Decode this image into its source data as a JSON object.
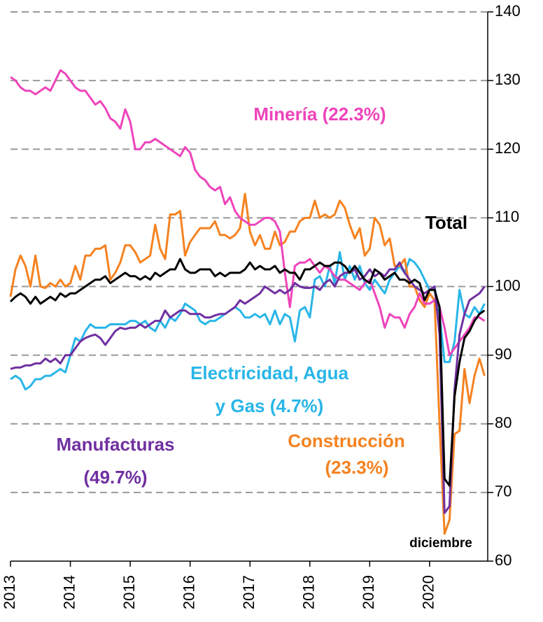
{
  "chart_data": {
    "type": "line",
    "categories": [
      "2013",
      null,
      null,
      null,
      null,
      null,
      null,
      null,
      null,
      null,
      null,
      null,
      "2014",
      null,
      null,
      null,
      null,
      null,
      null,
      null,
      null,
      null,
      null,
      null,
      "2015",
      null,
      null,
      null,
      null,
      null,
      null,
      null,
      null,
      null,
      null,
      null,
      "2016",
      null,
      null,
      null,
      null,
      null,
      null,
      null,
      null,
      null,
      null,
      null,
      "2017",
      null,
      null,
      null,
      null,
      null,
      null,
      null,
      null,
      null,
      null,
      null,
      "2018",
      null,
      null,
      null,
      null,
      null,
      null,
      null,
      null,
      null,
      null,
      null,
      "2019",
      null,
      null,
      null,
      null,
      null,
      null,
      null,
      null,
      null,
      null,
      null,
      "2020",
      null,
      null,
      null,
      null,
      null,
      null,
      null,
      null,
      null,
      null,
      null
    ],
    "ylim": [
      60,
      140
    ],
    "yticks": [
      60,
      70,
      80,
      90,
      100,
      110,
      120,
      130,
      140
    ],
    "grid": true,
    "y_axis_side": "right",
    "series": [
      {
        "label": [
          "Total"
        ],
        "color": "#000000",
        "values": [
          97.8,
          98.5,
          99,
          98.5,
          97.5,
          98.5,
          97.5,
          98,
          98.5,
          98,
          99,
          98.5,
          99,
          99,
          99.5,
          100,
          100.5,
          101,
          101,
          101.5,
          100.5,
          101,
          101.5,
          102,
          101.5,
          101.5,
          101,
          101.5,
          101,
          102,
          101.5,
          102,
          102.5,
          102.5,
          104,
          102.5,
          102,
          102,
          102.5,
          102.5,
          102.5,
          101.5,
          102,
          101.5,
          102,
          102,
          102,
          102.5,
          103.5,
          102.5,
          103,
          102.5,
          102.5,
          103,
          102,
          102.5,
          102,
          102,
          101,
          102.5,
          102.5,
          103,
          103.5,
          103,
          103,
          103.5,
          103.5,
          103,
          102,
          103,
          102,
          101,
          100.5,
          102.5,
          102,
          101,
          101.5,
          102,
          101,
          101,
          100.5,
          101,
          100.5,
          98,
          99.5,
          99.5,
          97,
          72,
          71,
          84,
          89,
          92.5,
          93.5,
          95,
          96,
          96.5
        ]
      },
      {
        "label": [
          "Minería (22.3%)"
        ],
        "color": "#ee44bb",
        "values": [
          130.5,
          130,
          129,
          128.5,
          128.5,
          128,
          128.5,
          129,
          128.5,
          130,
          131.5,
          131,
          130,
          129,
          128.5,
          128.5,
          127.5,
          126.5,
          127,
          126,
          124.5,
          124,
          123,
          125.8,
          124,
          120,
          120,
          121,
          121,
          121.5,
          121,
          120.5,
          120,
          119.5,
          119,
          120.3,
          119.5,
          117,
          116,
          115.5,
          114.5,
          114,
          114.5,
          112,
          113,
          111,
          110,
          109.5,
          109,
          109,
          109.5,
          110,
          110,
          109.5,
          108,
          102,
          97,
          103,
          103.5,
          103.5,
          104,
          103,
          102,
          103,
          102.5,
          101.5,
          101,
          101,
          100.5,
          100,
          99.5,
          100.5,
          101,
          99,
          97,
          94,
          96,
          95.5,
          95.5,
          94,
          96,
          97,
          99,
          97.5,
          97.5,
          98,
          97,
          94,
          90,
          91,
          92,
          93,
          94,
          95.5,
          95.5,
          95
        ]
      },
      {
        "label": [
          "Manufacturas",
          "(49.7%)"
        ],
        "color": "#7030a0",
        "values": [
          88,
          88.2,
          88.2,
          88.5,
          88.5,
          88.8,
          88.8,
          89.5,
          89,
          89.5,
          88.8,
          90,
          90,
          91,
          92,
          92.5,
          92.8,
          93,
          92.5,
          91.5,
          92.5,
          93.5,
          94,
          93.8,
          94,
          94,
          94.5,
          94,
          94.5,
          95,
          95,
          96.5,
          95.5,
          96,
          96.5,
          96.5,
          96,
          96,
          96,
          95.5,
          95.5,
          95.8,
          96,
          96,
          96.5,
          97,
          98,
          97.5,
          98,
          98.5,
          99,
          100,
          99.5,
          99,
          99.5,
          99,
          99.5,
          100.5,
          100,
          99.8,
          99.8,
          100,
          99.5,
          100.5,
          101,
          100,
          101.5,
          102,
          102,
          102.5,
          101,
          101.5,
          102.5,
          101.5,
          102,
          101.5,
          102.5,
          102.5,
          103.5,
          102,
          101,
          100,
          99.5,
          99,
          99.5,
          100,
          93,
          67,
          68,
          85,
          93,
          96,
          98,
          98.5,
          99,
          100
        ]
      },
      {
        "label": [
          "Electricidad, Agua",
          "y Gas (4.7%)"
        ],
        "color": "#29b6e8",
        "values": [
          86.5,
          87,
          86.5,
          85,
          85.5,
          86.5,
          86.5,
          87,
          87,
          87.5,
          88,
          87.5,
          90,
          92.5,
          92,
          93.5,
          94.5,
          94,
          94,
          94,
          94.5,
          94.5,
          94.5,
          94.5,
          95,
          95,
          94.5,
          95,
          94,
          93.5,
          95,
          94,
          95.5,
          95,
          96,
          97.5,
          97,
          96.5,
          95,
          94.5,
          95,
          95,
          95.5,
          96,
          96.5,
          97,
          96.5,
          95.5,
          95.5,
          96,
          95.5,
          96,
          94.5,
          96.5,
          94.5,
          96,
          95.5,
          92,
          96.5,
          97,
          95.5,
          101,
          101.5,
          100,
          103,
          100.5,
          105,
          101,
          103,
          101,
          103,
          100.5,
          99.5,
          101,
          100,
          99,
          101,
          102,
          103,
          102,
          104,
          103.5,
          102.5,
          101,
          99.5,
          100,
          96,
          89,
          89,
          92,
          99.5,
          96,
          95.5,
          97,
          96,
          97.5
        ]
      },
      {
        "label": [
          "Construcción",
          "(23.3%)"
        ],
        "color": "#f58220",
        "values": [
          98.5,
          102.5,
          104.5,
          103,
          100,
          104.5,
          100,
          99.8,
          100.5,
          100,
          101,
          100,
          100.5,
          103,
          101,
          104.5,
          104.5,
          105.5,
          105.5,
          106,
          101,
          102,
          103.5,
          106,
          106,
          105,
          103.5,
          104,
          104.5,
          109,
          105.5,
          104,
          110.5,
          110.5,
          111,
          104.5,
          106.5,
          107.5,
          108.5,
          108.5,
          108.5,
          109.5,
          107.5,
          107.5,
          107,
          107.5,
          108.5,
          113.5,
          108,
          106,
          107.5,
          105.5,
          105.5,
          108,
          106,
          106.5,
          108,
          108,
          109.5,
          110,
          110,
          112.5,
          110,
          110.5,
          110,
          110.5,
          112.5,
          111.5,
          109,
          107,
          108.5,
          104.5,
          105.5,
          110,
          109,
          106,
          107,
          103,
          103,
          104,
          100,
          100,
          98,
          97,
          99,
          98,
          80,
          64,
          66,
          78.5,
          79,
          88,
          83,
          87,
          89.5,
          87
        ]
      }
    ],
    "annotations": [
      "diciembre"
    ]
  }
}
